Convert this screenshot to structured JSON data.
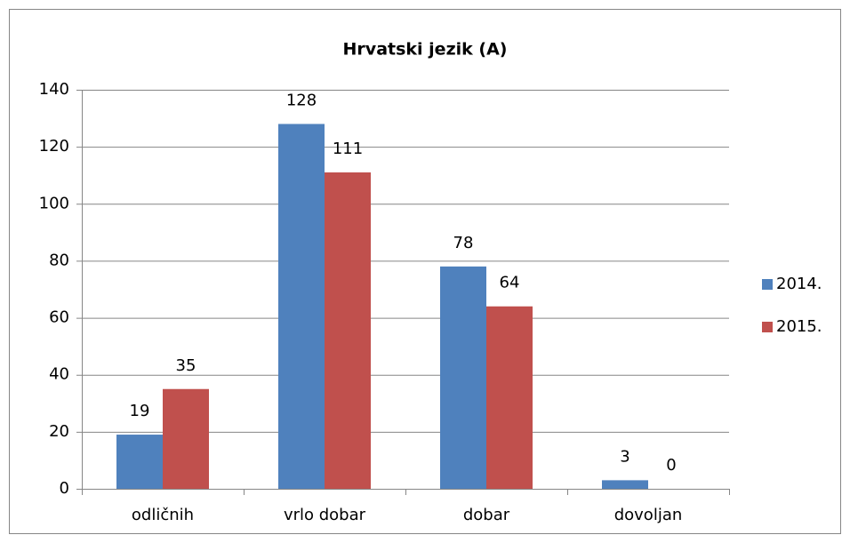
{
  "chart_data": {
    "type": "bar",
    "title": "Hrvatski jezik (A)",
    "categories": [
      "odličnih",
      "vrlo dobar",
      "dobar",
      "dovoljan"
    ],
    "series": [
      {
        "name": "2014.",
        "color": "#4f81bd",
        "values": [
          19,
          128,
          78,
          3
        ]
      },
      {
        "name": "2015.",
        "color": "#c0504d",
        "values": [
          35,
          111,
          64,
          0
        ]
      }
    ],
    "ylim": [
      0,
      140
    ],
    "yticks": [
      0,
      20,
      40,
      60,
      80,
      100,
      120,
      140
    ],
    "grid": true,
    "legend": "right"
  }
}
